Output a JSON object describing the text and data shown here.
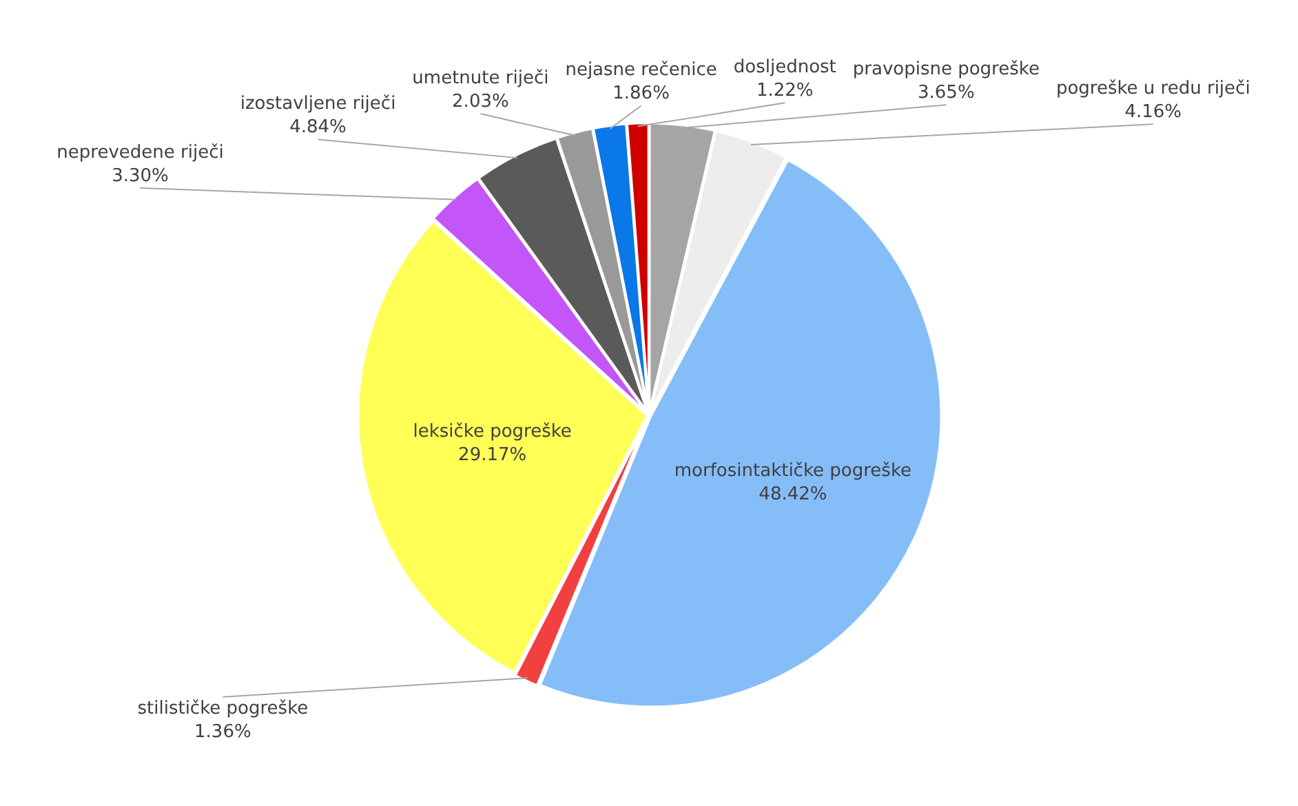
{
  "chart_data": {
    "type": "pie",
    "categories": [
      "pravopisne pogreške",
      "pogreške u redu riječi",
      "morfosintaktičke pogreške",
      "stilističke pogreške",
      "leksičke pogreške",
      "neprevedene riječi",
      "izostavljene riječi",
      "umetnute riječi",
      "nejasne rečenice",
      "dosljednost"
    ],
    "values": [
      3.65,
      4.16,
      48.42,
      1.36,
      29.17,
      3.3,
      4.84,
      2.03,
      1.86,
      1.22
    ],
    "value_labels": [
      "3.65%",
      "4.16%",
      "48.42%",
      "1.36%",
      "29.17%",
      "3.30%",
      "4.84%",
      "2.03%",
      "1.86%",
      "1.22%"
    ],
    "colors": [
      "#a5a5a5",
      "#ededed",
      "#85bdf8",
      "#f04040",
      "#ffff55",
      "#c455f8",
      "#5a5a5a",
      "#999999",
      "#0a78e6",
      "#d00000"
    ],
    "legend": false
  }
}
